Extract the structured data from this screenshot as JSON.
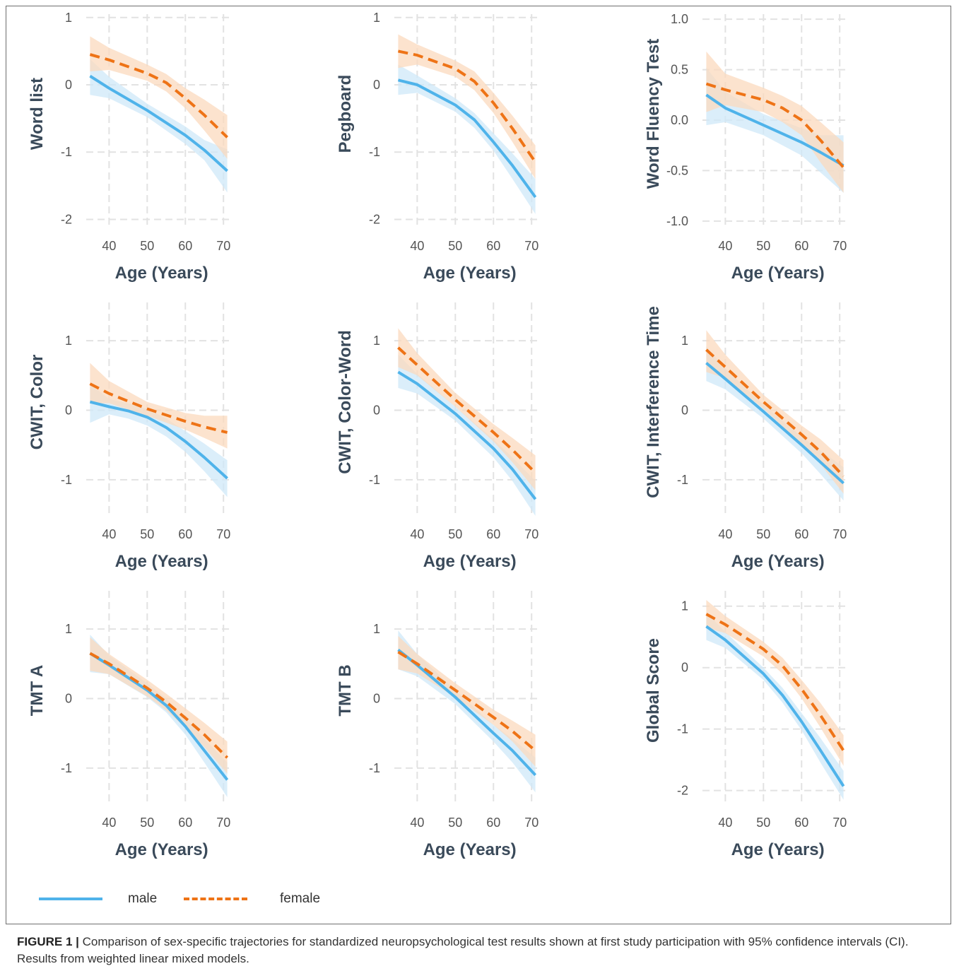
{
  "colors": {
    "male": "#4fb3ea",
    "female": "#ee7316",
    "male_band": "#cfe8f8",
    "female_band": "#fbd9bd",
    "grid": "#e2e2e2",
    "axis_text": "#555555",
    "title_text": "#3a4a5a"
  },
  "legend": {
    "male": "male",
    "female": "female"
  },
  "caption": {
    "label": "FIGURE 1 |",
    "text": "Comparison of sex-specific trajectories for standardized neuropsychological test results shown at first study participation with 95% confidence intervals (CI). Results from weighted linear mixed models."
  },
  "chart_data": [
    {
      "type": "line",
      "ylabel": "Word list",
      "xlabel": "Age (Years)",
      "xlim": [
        34,
        72
      ],
      "ylim": [
        -2.1,
        1.05
      ],
      "xticks": [
        40,
        50,
        60,
        70
      ],
      "yticks": [
        1,
        0,
        -1,
        -2
      ],
      "ytick_labels": [
        "1",
        "0",
        "-1",
        "-2"
      ],
      "series": [
        {
          "name": "male",
          "x": [
            35,
            40,
            50,
            60,
            65,
            71
          ],
          "y": [
            0.13,
            -0.05,
            -0.38,
            -0.75,
            -0.97,
            -1.28
          ],
          "lower": [
            -0.15,
            -0.2,
            -0.48,
            -0.88,
            -1.12,
            -1.6
          ],
          "upper": [
            0.38,
            0.12,
            -0.28,
            -0.62,
            -0.82,
            -0.96
          ]
        },
        {
          "name": "female",
          "x": [
            35,
            40,
            50,
            55,
            60,
            65,
            71
          ],
          "y": [
            0.45,
            0.37,
            0.17,
            0.03,
            -0.2,
            -0.45,
            -0.78
          ],
          "lower": [
            0.2,
            0.22,
            0.06,
            -0.1,
            -0.35,
            -0.68,
            -1.1
          ],
          "upper": [
            0.72,
            0.55,
            0.3,
            0.16,
            -0.05,
            -0.22,
            -0.45
          ]
        }
      ]
    },
    {
      "type": "line",
      "ylabel": "Pegboard",
      "xlabel": "Age (Years)",
      "xlim": [
        34,
        72
      ],
      "ylim": [
        -2.1,
        1.05
      ],
      "xticks": [
        40,
        50,
        60,
        70
      ],
      "yticks": [
        1,
        0,
        -1,
        -2
      ],
      "ytick_labels": [
        "1",
        "0",
        "-1",
        "-2"
      ],
      "series": [
        {
          "name": "male",
          "x": [
            35,
            40,
            50,
            55,
            60,
            65,
            71
          ],
          "y": [
            0.07,
            0.0,
            -0.3,
            -0.52,
            -0.85,
            -1.2,
            -1.67
          ],
          "lower": [
            -0.15,
            -0.12,
            -0.4,
            -0.64,
            -0.98,
            -1.4,
            -1.92
          ],
          "upper": [
            0.3,
            0.14,
            -0.2,
            -0.42,
            -0.72,
            -1.02,
            -1.4
          ]
        },
        {
          "name": "female",
          "x": [
            35,
            40,
            50,
            55,
            60,
            65,
            71
          ],
          "y": [
            0.5,
            0.44,
            0.24,
            0.05,
            -0.27,
            -0.65,
            -1.15
          ],
          "lower": [
            0.25,
            0.3,
            0.12,
            -0.08,
            -0.42,
            -0.85,
            -1.4
          ],
          "upper": [
            0.75,
            0.6,
            0.36,
            0.2,
            -0.12,
            -0.46,
            -0.9
          ]
        }
      ]
    },
    {
      "type": "line",
      "ylabel": "Word Fluency Test",
      "xlabel": "Age (Years)",
      "xlim": [
        34,
        72
      ],
      "ylim": [
        -1.05,
        1.05
      ],
      "xticks": [
        40,
        50,
        60,
        70
      ],
      "yticks": [
        1,
        0.5,
        0,
        -0.5,
        -1
      ],
      "ytick_labels": [
        "1.0",
        "0.5",
        "0.0",
        "-0.5",
        "-1.0"
      ],
      "series": [
        {
          "name": "male",
          "x": [
            35,
            40,
            50,
            60,
            65,
            71
          ],
          "y": [
            0.25,
            0.12,
            -0.05,
            -0.22,
            -0.32,
            -0.45
          ],
          "lower": [
            -0.05,
            -0.02,
            -0.15,
            -0.35,
            -0.52,
            -0.72
          ],
          "upper": [
            0.52,
            0.28,
            0.06,
            -0.08,
            -0.15,
            -0.15
          ]
        },
        {
          "name": "female",
          "x": [
            35,
            40,
            50,
            55,
            60,
            65,
            71
          ],
          "y": [
            0.36,
            0.3,
            0.2,
            0.12,
            0.0,
            -0.2,
            -0.47
          ],
          "lower": [
            0.08,
            0.15,
            0.08,
            -0.02,
            -0.15,
            -0.42,
            -0.72
          ],
          "upper": [
            0.68,
            0.46,
            0.32,
            0.24,
            0.14,
            -0.02,
            -0.22
          ]
        }
      ]
    },
    {
      "type": "line",
      "ylabel": "CWIT, Color",
      "xlabel": "Age (Years)",
      "xlim": [
        34,
        72
      ],
      "ylim": [
        -1.5,
        1.55
      ],
      "xticks": [
        40,
        50,
        60,
        70
      ],
      "yticks": [
        1,
        0,
        -1
      ],
      "ytick_labels": [
        "1",
        "0",
        "-1"
      ],
      "series": [
        {
          "name": "male",
          "x": [
            35,
            40,
            45,
            50,
            55,
            60,
            65,
            71
          ],
          "y": [
            0.12,
            0.05,
            -0.01,
            -0.1,
            -0.25,
            -0.45,
            -0.68,
            -0.98
          ],
          "lower": [
            -0.18,
            -0.06,
            -0.12,
            -0.22,
            -0.38,
            -0.6,
            -0.88,
            -1.25
          ],
          "upper": [
            0.38,
            0.16,
            0.1,
            0.02,
            -0.12,
            -0.3,
            -0.48,
            -0.72
          ]
        },
        {
          "name": "female",
          "x": [
            35,
            40,
            50,
            60,
            65,
            71
          ],
          "y": [
            0.38,
            0.24,
            0.02,
            -0.16,
            -0.24,
            -0.32
          ],
          "lower": [
            0.1,
            0.1,
            -0.08,
            -0.28,
            -0.4,
            -0.55
          ],
          "upper": [
            0.68,
            0.42,
            0.12,
            -0.04,
            -0.08,
            -0.08
          ]
        }
      ]
    },
    {
      "type": "line",
      "ylabel": "CWIT, Color-Word",
      "xlabel": "Age (Years)",
      "xlim": [
        34,
        72
      ],
      "ylim": [
        -1.5,
        1.55
      ],
      "xticks": [
        40,
        50,
        60,
        70
      ],
      "yticks": [
        1,
        0,
        -1
      ],
      "ytick_labels": [
        "1",
        "0",
        "-1"
      ],
      "series": [
        {
          "name": "male",
          "x": [
            35,
            40,
            50,
            60,
            65,
            71
          ],
          "y": [
            0.55,
            0.38,
            -0.05,
            -0.55,
            -0.85,
            -1.28
          ],
          "lower": [
            0.32,
            0.24,
            -0.15,
            -0.68,
            -1.02,
            -1.52
          ],
          "upper": [
            0.8,
            0.52,
            0.05,
            -0.42,
            -0.68,
            -1.02
          ]
        },
        {
          "name": "female",
          "x": [
            35,
            40,
            50,
            60,
            65,
            71
          ],
          "y": [
            0.9,
            0.65,
            0.15,
            -0.32,
            -0.57,
            -0.9
          ],
          "lower": [
            0.62,
            0.5,
            0.05,
            -0.45,
            -0.75,
            -1.15
          ],
          "upper": [
            1.18,
            0.82,
            0.25,
            -0.2,
            -0.4,
            -0.65
          ]
        }
      ]
    },
    {
      "type": "line",
      "ylabel": "CWIT, Interference Time",
      "xlabel": "Age (Years)",
      "xlim": [
        34,
        72
      ],
      "ylim": [
        -1.5,
        1.55
      ],
      "xticks": [
        40,
        50,
        60,
        70
      ],
      "yticks": [
        1,
        0,
        -1
      ],
      "ytick_labels": [
        "1",
        "0",
        "-1"
      ],
      "series": [
        {
          "name": "male",
          "x": [
            35,
            40,
            50,
            60,
            65,
            71
          ],
          "y": [
            0.68,
            0.45,
            -0.02,
            -0.5,
            -0.75,
            -1.05
          ],
          "lower": [
            0.42,
            0.3,
            -0.12,
            -0.62,
            -0.92,
            -1.3
          ],
          "upper": [
            0.92,
            0.6,
            0.08,
            -0.38,
            -0.58,
            -0.82
          ]
        },
        {
          "name": "female",
          "x": [
            35,
            40,
            50,
            60,
            65,
            71
          ],
          "y": [
            0.87,
            0.62,
            0.12,
            -0.35,
            -0.6,
            -0.95
          ],
          "lower": [
            0.55,
            0.46,
            0.02,
            -0.48,
            -0.78,
            -1.2
          ],
          "upper": [
            1.15,
            0.8,
            0.22,
            -0.22,
            -0.42,
            -0.72
          ]
        }
      ]
    },
    {
      "type": "line",
      "ylabel": "TMT A",
      "xlabel": "Age (Years)",
      "xlim": [
        34,
        72
      ],
      "ylim": [
        -1.5,
        1.55
      ],
      "xticks": [
        40,
        50,
        60,
        70
      ],
      "yticks": [
        1,
        0,
        -1
      ],
      "ytick_labels": [
        "1",
        "0",
        "-1"
      ],
      "series": [
        {
          "name": "male",
          "x": [
            35,
            40,
            50,
            55,
            60,
            65,
            71
          ],
          "y": [
            0.65,
            0.48,
            0.12,
            -0.1,
            -0.4,
            -0.75,
            -1.17
          ],
          "lower": [
            0.38,
            0.35,
            0.02,
            -0.2,
            -0.52,
            -0.92,
            -1.42
          ],
          "upper": [
            0.92,
            0.62,
            0.22,
            0.0,
            -0.28,
            -0.58,
            -0.92
          ]
        },
        {
          "name": "female",
          "x": [
            35,
            40,
            50,
            55,
            60,
            65,
            71
          ],
          "y": [
            0.65,
            0.5,
            0.15,
            -0.05,
            -0.28,
            -0.52,
            -0.85
          ],
          "lower": [
            0.4,
            0.35,
            0.03,
            -0.17,
            -0.42,
            -0.7,
            -1.08
          ],
          "upper": [
            0.88,
            0.64,
            0.27,
            0.07,
            -0.14,
            -0.35,
            -0.62
          ]
        }
      ]
    },
    {
      "type": "line",
      "ylabel": "TMT B",
      "xlabel": "Age (Years)",
      "xlim": [
        34,
        72
      ],
      "ylim": [
        -1.5,
        1.55
      ],
      "xticks": [
        40,
        50,
        60,
        70
      ],
      "yticks": [
        1,
        0,
        -1
      ],
      "ytick_labels": [
        "1",
        "0",
        "-1"
      ],
      "series": [
        {
          "name": "male",
          "x": [
            35,
            40,
            50,
            60,
            65,
            71
          ],
          "y": [
            0.7,
            0.48,
            0.02,
            -0.5,
            -0.75,
            -1.1
          ],
          "lower": [
            0.42,
            0.32,
            -0.08,
            -0.62,
            -0.92,
            -1.35
          ],
          "upper": [
            0.98,
            0.64,
            0.12,
            -0.38,
            -0.58,
            -0.85
          ]
        },
        {
          "name": "female",
          "x": [
            35,
            40,
            50,
            60,
            65,
            71
          ],
          "y": [
            0.67,
            0.5,
            0.12,
            -0.27,
            -0.47,
            -0.75
          ],
          "lower": [
            0.42,
            0.36,
            0.02,
            -0.38,
            -0.62,
            -0.98
          ],
          "upper": [
            0.9,
            0.64,
            0.22,
            -0.16,
            -0.32,
            -0.52
          ]
        }
      ]
    },
    {
      "type": "line",
      "ylabel": "Global Score",
      "xlabel": "Age (Years)",
      "xlim": [
        34,
        72
      ],
      "ylim": [
        -2.2,
        1.25
      ],
      "xticks": [
        40,
        50,
        60,
        70
      ],
      "yticks": [
        1,
        0,
        -1,
        -2
      ],
      "ytick_labels": [
        "1",
        "0",
        "-1",
        "-2"
      ],
      "series": [
        {
          "name": "male",
          "x": [
            35,
            40,
            50,
            55,
            60,
            65,
            71
          ],
          "y": [
            0.67,
            0.45,
            -0.1,
            -0.45,
            -0.88,
            -1.35,
            -1.93
          ],
          "lower": [
            0.45,
            0.32,
            -0.2,
            -0.57,
            -1.02,
            -1.55,
            -2.15
          ],
          "upper": [
            0.9,
            0.58,
            0.0,
            -0.33,
            -0.74,
            -1.15,
            -1.68
          ]
        },
        {
          "name": "female",
          "x": [
            35,
            40,
            50,
            55,
            60,
            65,
            71
          ],
          "y": [
            0.87,
            0.7,
            0.3,
            0.03,
            -0.35,
            -0.78,
            -1.35
          ],
          "lower": [
            0.65,
            0.56,
            0.18,
            -0.1,
            -0.5,
            -0.98,
            -1.6
          ],
          "upper": [
            1.1,
            0.84,
            0.42,
            0.16,
            -0.2,
            -0.58,
            -1.1
          ]
        }
      ]
    }
  ]
}
